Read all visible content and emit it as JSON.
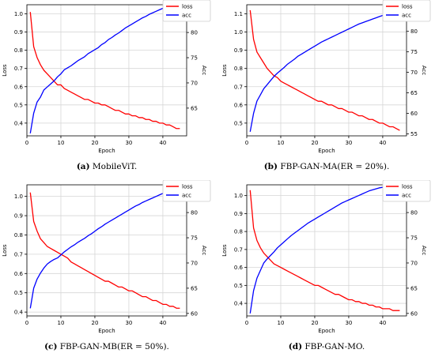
{
  "chart_data": [
    {
      "type": "line",
      "caption_letter": "(a)",
      "caption_text": "MobileViT.",
      "xlabel": "Epoch",
      "ylabel_left": "Loss",
      "ylabel_right": "Acc",
      "xlim": [
        0,
        47
      ],
      "ylim_left": [
        0.33,
        1.05
      ],
      "ylim_right": [
        59.5,
        85.5
      ],
      "xticks": [
        0,
        10,
        20,
        30,
        40
      ],
      "yticks_left": [
        0.4,
        0.5,
        0.6,
        0.7,
        0.8,
        0.9,
        1.0
      ],
      "yticks_right": [
        65,
        70,
        75,
        80
      ],
      "grid": true,
      "legend_position": "top-right",
      "colors": {
        "loss": "#ff0000",
        "acc": "#0000ff"
      },
      "x": [
        1,
        2,
        3,
        4,
        5,
        6,
        7,
        8,
        9,
        10,
        11,
        12,
        13,
        14,
        15,
        16,
        17,
        18,
        19,
        20,
        21,
        22,
        23,
        24,
        25,
        26,
        27,
        28,
        29,
        30,
        31,
        32,
        33,
        34,
        35,
        36,
        37,
        38,
        39,
        40,
        41,
        42,
        43,
        44,
        45
      ],
      "series": [
        {
          "name": "loss",
          "axis": "left",
          "values": [
            1.01,
            0.82,
            0.76,
            0.72,
            0.69,
            0.67,
            0.65,
            0.63,
            0.61,
            0.61,
            0.59,
            0.58,
            0.57,
            0.56,
            0.55,
            0.54,
            0.53,
            0.53,
            0.52,
            0.51,
            0.51,
            0.5,
            0.5,
            0.49,
            0.48,
            0.47,
            0.47,
            0.46,
            0.45,
            0.45,
            0.44,
            0.44,
            0.43,
            0.43,
            0.42,
            0.42,
            0.41,
            0.41,
            0.4,
            0.4,
            0.39,
            0.39,
            0.38,
            0.37,
            0.37
          ]
        },
        {
          "name": "acc",
          "axis": "right",
          "values": [
            60.0,
            64.0,
            66.2,
            67.2,
            68.6,
            69.2,
            69.8,
            70.4,
            71.2,
            71.8,
            72.6,
            73.0,
            73.4,
            73.9,
            74.4,
            74.8,
            75.2,
            75.8,
            76.2,
            76.6,
            77.0,
            77.6,
            78.0,
            78.6,
            79.0,
            79.5,
            79.9,
            80.4,
            80.9,
            81.3,
            81.7,
            82.1,
            82.5,
            82.9,
            83.2,
            83.6,
            83.9,
            84.2,
            84.5,
            84.8,
            85.0,
            85.1,
            85.0,
            85.2,
            85.1
          ]
        }
      ]
    },
    {
      "type": "line",
      "caption_letter": "(b)",
      "caption_text": "FBP-GAN-MA(ER = 20%).",
      "xlabel": "Epoch",
      "ylabel_left": "Loss",
      "ylabel_right": "Acc",
      "xlim": [
        0,
        47
      ],
      "ylim_left": [
        0.43,
        1.15
      ],
      "ylim_right": [
        54.5,
        86.5
      ],
      "xticks": [
        0,
        10,
        20,
        30,
        40
      ],
      "yticks_left": [
        0.5,
        0.6,
        0.7,
        0.8,
        0.9,
        1.0,
        1.1
      ],
      "yticks_right": [
        55,
        60,
        65,
        70,
        75,
        80
      ],
      "grid": true,
      "legend_position": "top-right",
      "colors": {
        "loss": "#ff0000",
        "acc": "#0000ff"
      },
      "x": [
        1,
        2,
        3,
        4,
        5,
        6,
        7,
        8,
        9,
        10,
        11,
        12,
        13,
        14,
        15,
        16,
        17,
        18,
        19,
        20,
        21,
        22,
        23,
        24,
        25,
        26,
        27,
        28,
        29,
        30,
        31,
        32,
        33,
        34,
        35,
        36,
        37,
        38,
        39,
        40,
        41,
        42,
        43,
        44,
        45
      ],
      "series": [
        {
          "name": "loss",
          "axis": "left",
          "values": [
            1.12,
            0.96,
            0.89,
            0.86,
            0.83,
            0.8,
            0.78,
            0.76,
            0.75,
            0.73,
            0.72,
            0.71,
            0.7,
            0.69,
            0.68,
            0.67,
            0.66,
            0.65,
            0.64,
            0.63,
            0.62,
            0.62,
            0.61,
            0.6,
            0.6,
            0.59,
            0.58,
            0.58,
            0.57,
            0.56,
            0.56,
            0.55,
            0.54,
            0.54,
            0.53,
            0.52,
            0.52,
            0.51,
            0.5,
            0.5,
            0.49,
            0.48,
            0.48,
            0.47,
            0.46
          ]
        },
        {
          "name": "acc",
          "axis": "right",
          "values": [
            55.5,
            60.0,
            63.0,
            64.5,
            66.0,
            67.0,
            68.0,
            69.0,
            69.8,
            70.5,
            71.2,
            72.0,
            72.6,
            73.2,
            73.9,
            74.4,
            74.9,
            75.4,
            75.9,
            76.4,
            76.9,
            77.4,
            77.8,
            78.2,
            78.6,
            79.0,
            79.4,
            79.8,
            80.2,
            80.6,
            81.0,
            81.4,
            81.8,
            82.1,
            82.4,
            82.7,
            83.0,
            83.3,
            83.6,
            83.9,
            84.2,
            84.5,
            84.8,
            85.2,
            85.5
          ]
        }
      ]
    },
    {
      "type": "line",
      "caption_letter": "(c)",
      "caption_text": "FBP-GAN-MB(ER = 50%).",
      "xlabel": "Epoch",
      "ylabel_left": "Loss",
      "ylabel_right": "Acc",
      "xlim": [
        0,
        47
      ],
      "ylim_left": [
        0.38,
        1.06
      ],
      "ylim_right": [
        59.5,
        85.5
      ],
      "xticks": [
        0,
        10,
        20,
        30,
        40
      ],
      "yticks_left": [
        0.4,
        0.5,
        0.6,
        0.7,
        0.8,
        0.9,
        1.0
      ],
      "yticks_right": [
        60,
        65,
        70,
        75,
        80
      ],
      "grid": true,
      "legend_position": "top-right",
      "colors": {
        "loss": "#ff0000",
        "acc": "#0000ff"
      },
      "x": [
        1,
        2,
        3,
        4,
        5,
        6,
        7,
        8,
        9,
        10,
        11,
        12,
        13,
        14,
        15,
        16,
        17,
        18,
        19,
        20,
        21,
        22,
        23,
        24,
        25,
        26,
        27,
        28,
        29,
        30,
        31,
        32,
        33,
        34,
        35,
        36,
        37,
        38,
        39,
        40,
        41,
        42,
        43,
        44,
        45
      ],
      "series": [
        {
          "name": "loss",
          "axis": "left",
          "values": [
            1.02,
            0.87,
            0.82,
            0.78,
            0.76,
            0.74,
            0.73,
            0.72,
            0.71,
            0.7,
            0.69,
            0.68,
            0.66,
            0.65,
            0.64,
            0.63,
            0.62,
            0.61,
            0.6,
            0.59,
            0.58,
            0.57,
            0.56,
            0.56,
            0.55,
            0.54,
            0.53,
            0.53,
            0.52,
            0.51,
            0.51,
            0.5,
            0.49,
            0.48,
            0.48,
            0.47,
            0.46,
            0.46,
            0.45,
            0.44,
            0.44,
            0.43,
            0.43,
            0.42,
            0.42
          ]
        },
        {
          "name": "acc",
          "axis": "right",
          "values": [
            61.0,
            65.0,
            66.8,
            68.0,
            69.0,
            69.8,
            70.3,
            70.7,
            71.0,
            71.6,
            72.2,
            72.7,
            73.2,
            73.6,
            74.1,
            74.5,
            74.9,
            75.4,
            75.8,
            76.3,
            76.8,
            77.2,
            77.7,
            78.1,
            78.5,
            78.9,
            79.3,
            79.7,
            80.1,
            80.5,
            80.9,
            81.3,
            81.6,
            82.0,
            82.3,
            82.6,
            82.9,
            83.2,
            83.5,
            83.8,
            84.0,
            84.2,
            84.4,
            84.5,
            84.3
          ]
        }
      ]
    },
    {
      "type": "line",
      "caption_letter": "(d)",
      "caption_text": "FBP-GAN-MO.",
      "xlabel": "Epoch",
      "ylabel_left": "Loss",
      "ylabel_right": "Acc",
      "xlim": [
        0,
        47
      ],
      "ylim_left": [
        0.33,
        1.06
      ],
      "ylim_right": [
        59.5,
        85.5
      ],
      "xticks": [
        0,
        10,
        20,
        30,
        40
      ],
      "yticks_left": [
        0.4,
        0.5,
        0.6,
        0.7,
        0.8,
        0.9,
        1.0
      ],
      "yticks_right": [
        60,
        65,
        70,
        75,
        80
      ],
      "grid": true,
      "legend_position": "top-right",
      "colors": {
        "loss": "#ff0000",
        "acc": "#0000ff"
      },
      "x": [
        1,
        2,
        3,
        4,
        5,
        6,
        7,
        8,
        9,
        10,
        11,
        12,
        13,
        14,
        15,
        16,
        17,
        18,
        19,
        20,
        21,
        22,
        23,
        24,
        25,
        26,
        27,
        28,
        29,
        30,
        31,
        32,
        33,
        34,
        35,
        36,
        37,
        38,
        39,
        40,
        41,
        42,
        43,
        44,
        45
      ],
      "series": [
        {
          "name": "loss",
          "axis": "left",
          "values": [
            1.03,
            0.82,
            0.75,
            0.71,
            0.68,
            0.66,
            0.64,
            0.62,
            0.61,
            0.6,
            0.59,
            0.58,
            0.57,
            0.56,
            0.55,
            0.54,
            0.53,
            0.52,
            0.51,
            0.5,
            0.5,
            0.49,
            0.48,
            0.47,
            0.46,
            0.45,
            0.45,
            0.44,
            0.43,
            0.42,
            0.42,
            0.41,
            0.41,
            0.4,
            0.4,
            0.39,
            0.39,
            0.38,
            0.38,
            0.37,
            0.37,
            0.37,
            0.36,
            0.36,
            0.36
          ]
        },
        {
          "name": "acc",
          "axis": "right",
          "values": [
            60.0,
            64.5,
            67.0,
            68.5,
            70.0,
            70.8,
            71.5,
            72.2,
            73.0,
            73.6,
            74.2,
            74.8,
            75.4,
            75.9,
            76.4,
            76.9,
            77.4,
            77.9,
            78.3,
            78.7,
            79.1,
            79.5,
            79.9,
            80.3,
            80.7,
            81.1,
            81.5,
            81.9,
            82.2,
            82.5,
            82.8,
            83.1,
            83.4,
            83.7,
            84.0,
            84.3,
            84.5,
            84.7,
            84.9,
            85.0,
            85.1,
            85.2,
            85.2,
            85.3,
            85.3
          ]
        }
      ]
    }
  ]
}
